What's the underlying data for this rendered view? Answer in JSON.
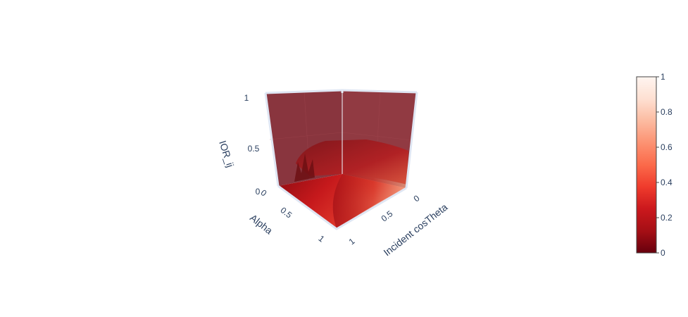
{
  "chart_data": {
    "type": "surface3d",
    "colorscale": "Reds",
    "colorscale_stops": [
      [
        0.0,
        "#67000d"
      ],
      [
        0.125,
        "#a50f15"
      ],
      [
        0.25,
        "#cb181d"
      ],
      [
        0.375,
        "#ef3b2c"
      ],
      [
        0.5,
        "#fb6a4a"
      ],
      [
        0.625,
        "#fc9272"
      ],
      [
        0.75,
        "#fcbba1"
      ],
      [
        0.875,
        "#fee0d2"
      ],
      [
        1.0,
        "#fff5f0"
      ]
    ],
    "axes": {
      "x": {
        "label": "Incident cosTheta",
        "range": [
          0,
          1
        ],
        "ticks": [
          "0",
          "0.5",
          "1"
        ]
      },
      "y": {
        "label": "Alpha",
        "range": [
          0,
          1
        ],
        "ticks": [
          "0",
          "0.5",
          "1"
        ]
      },
      "z": {
        "label": "IOR_ij",
        "range": [
          0,
          1
        ],
        "ticks": [
          "0",
          "0.5",
          "1"
        ]
      }
    },
    "colorbar": {
      "range": [
        0,
        1
      ],
      "ticks": [
        "0",
        "0.2",
        "0.4",
        "0.6",
        "0.8",
        "1"
      ]
    },
    "grid": true,
    "surfaces": [
      {
        "name": "",
        "description_level": "mid"
      }
    ]
  }
}
